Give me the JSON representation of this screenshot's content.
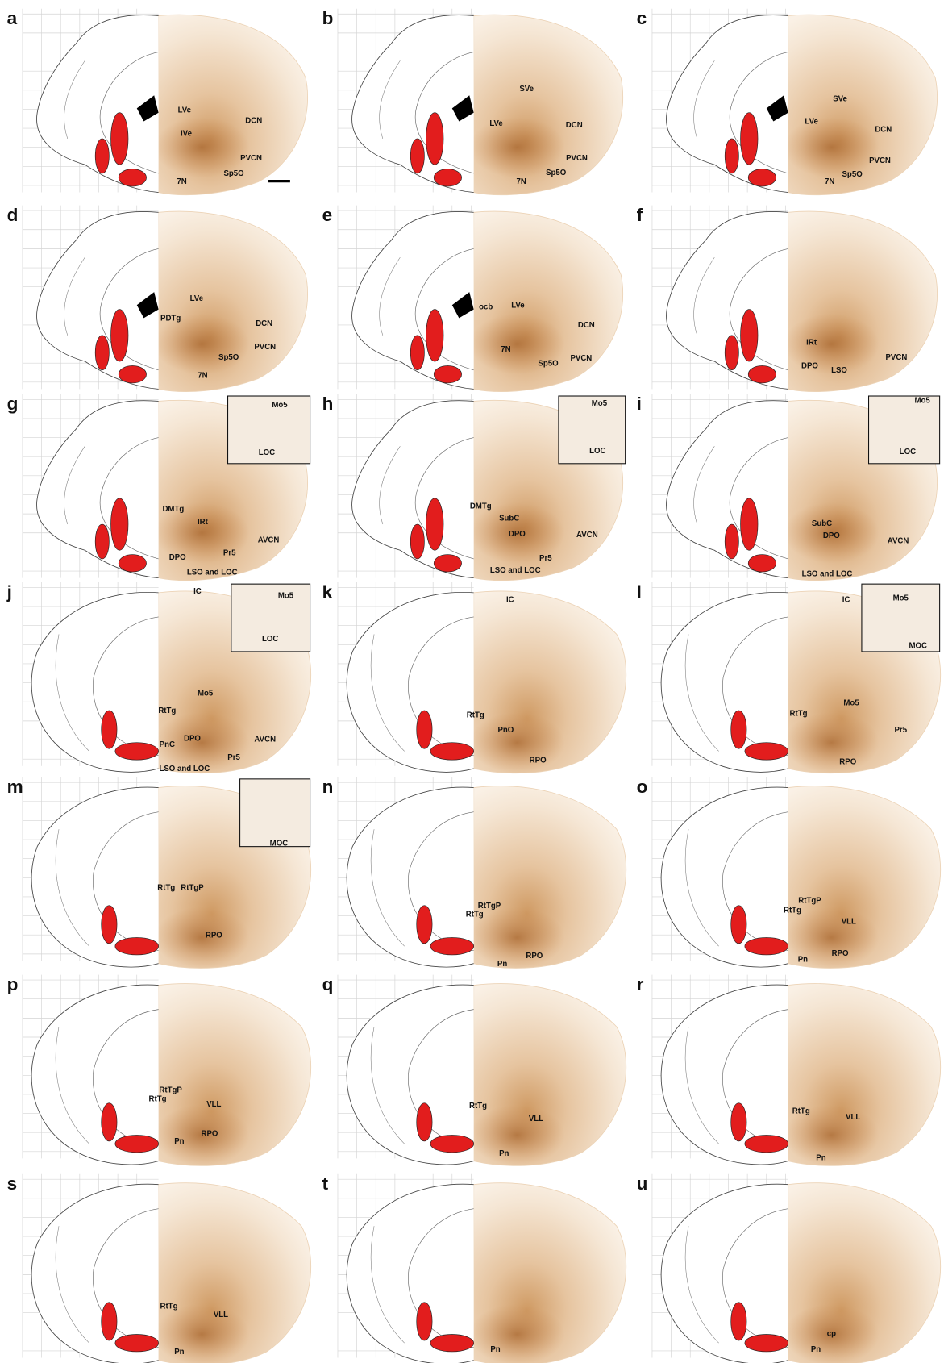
{
  "panels": [
    {
      "letter": "a",
      "labels": [
        "LVe",
        "IVe",
        "DCN",
        "PVCN",
        "Sp5O",
        "7N"
      ]
    },
    {
      "letter": "b",
      "labels": [
        "SVe",
        "LVe",
        "DCN",
        "PVCN",
        "Sp5O",
        "7N"
      ]
    },
    {
      "letter": "c",
      "labels": [
        "SVe",
        "LVe",
        "DCN",
        "PVCN",
        "Sp5O",
        "7N"
      ]
    },
    {
      "letter": "d",
      "labels": [
        "LVe",
        "PDTg",
        "DCN",
        "PVCN",
        "Sp5O",
        "7N"
      ]
    },
    {
      "letter": "e",
      "labels": [
        "ocb",
        "LVe",
        "DCN",
        "7N",
        "Sp5O",
        "PVCN"
      ]
    },
    {
      "letter": "f",
      "labels": [
        "IRt",
        "DPO",
        "LSO",
        "PVCN"
      ]
    },
    {
      "letter": "g",
      "labels": [
        "DMTg",
        "IRt",
        "AVCN",
        "DPO",
        "Pr5",
        "LSO and LOC"
      ],
      "inset": [
        "Mo5",
        "LOC"
      ]
    },
    {
      "letter": "h",
      "labels": [
        "DMTg",
        "SubC",
        "DPO",
        "AVCN",
        "Pr5",
        "LSO and LOC"
      ],
      "inset": [
        "Mo5",
        "LOC"
      ]
    },
    {
      "letter": "i",
      "labels": [
        "SubC",
        "DPO",
        "AVCN",
        "LSO and LOC"
      ],
      "inset": [
        "Mo5",
        "LOC"
      ]
    },
    {
      "letter": "j",
      "labels": [
        "IC",
        "Mo5",
        "RtTg",
        "PnC",
        "DPO",
        "AVCN",
        "Pr5",
        "LSO and LOC"
      ],
      "inset": [
        "Mo5",
        "LOC"
      ]
    },
    {
      "letter": "k",
      "labels": [
        "IC",
        "RtTg",
        "PnO",
        "RPO"
      ]
    },
    {
      "letter": "l",
      "labels": [
        "IC",
        "Mo5",
        "RtTg",
        "Pr5",
        "RPO"
      ],
      "inset": [
        "Mo5",
        "MOC"
      ]
    },
    {
      "letter": "m",
      "labels": [
        "RtTg",
        "RtTgP",
        "RPO"
      ],
      "inset": [
        "MOC"
      ]
    },
    {
      "letter": "n",
      "labels": [
        "RtTgP",
        "RtTg",
        "RPO",
        "Pn"
      ]
    },
    {
      "letter": "o",
      "labels": [
        "RtTgP",
        "RtTg",
        "VLL",
        "RPO",
        "Pn"
      ]
    },
    {
      "letter": "p",
      "labels": [
        "RtTgP",
        "RtTg",
        "VLL",
        "RPO",
        "Pn"
      ]
    },
    {
      "letter": "q",
      "labels": [
        "RtTg",
        "VLL",
        "Pn"
      ]
    },
    {
      "letter": "r",
      "labels": [
        "RtTg",
        "VLL",
        "Pn"
      ]
    },
    {
      "letter": "s",
      "labels": [
        "RtTg",
        "VLL",
        "Pn"
      ]
    },
    {
      "letter": "t",
      "labels": [
        "Pn"
      ]
    },
    {
      "letter": "u",
      "labels": [
        "cp",
        "Pn"
      ]
    }
  ]
}
